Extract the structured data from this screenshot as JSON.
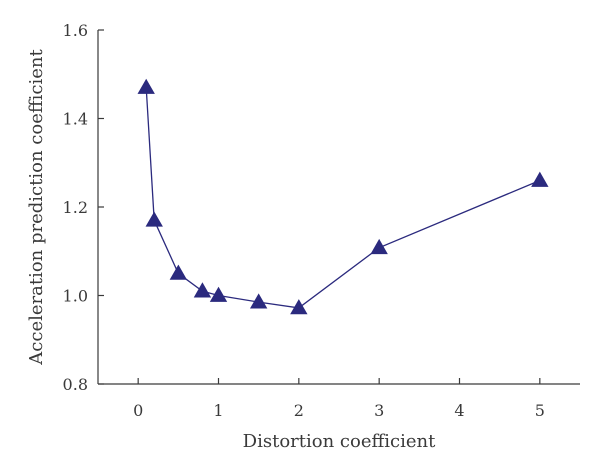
{
  "chart_data": {
    "type": "line",
    "xlabel": "Distortion coefficient",
    "ylabel": "Acceleration prediction coefficient",
    "xlim": [
      -0.5,
      5.5
    ],
    "ylim": [
      0.8,
      1.6
    ],
    "xticks": [
      0,
      1,
      2,
      3,
      4,
      5
    ],
    "yticks": [
      0.8,
      1.0,
      1.2,
      1.4,
      1.6
    ],
    "xtick_labels": [
      "0",
      "1",
      "2",
      "3",
      "4",
      "5"
    ],
    "ytick_labels": [
      "0.8",
      "1.0",
      "1.2",
      "1.4",
      "1.6"
    ],
    "grid": false,
    "series": [
      {
        "marker": "triangle",
        "color": "#2b2a7e",
        "x": [
          0.1,
          0.2,
          0.5,
          0.8,
          1.0,
          1.5,
          2.0,
          3.0,
          5.0
        ],
        "y": [
          1.47,
          1.17,
          1.05,
          1.01,
          1.0,
          0.985,
          0.972,
          1.108,
          1.26
        ]
      }
    ]
  }
}
